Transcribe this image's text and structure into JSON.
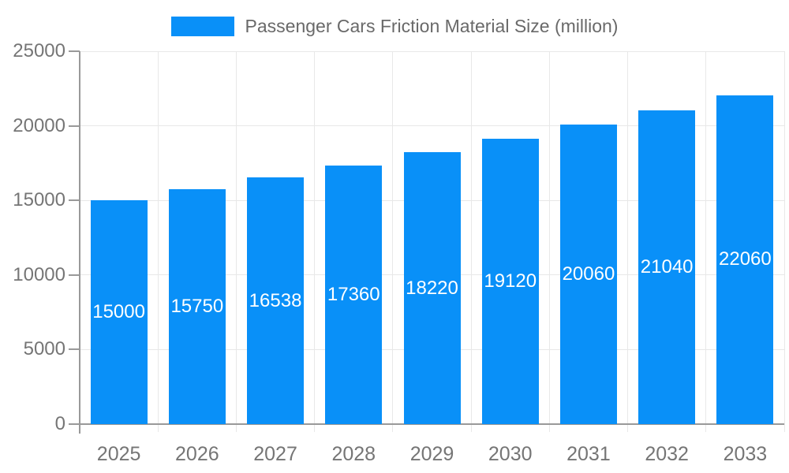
{
  "chart_data": {
    "type": "bar",
    "title": "Passenger Cars Friction Material Size (million)",
    "categories": [
      "2025",
      "2026",
      "2027",
      "2028",
      "2029",
      "2030",
      "2031",
      "2032",
      "2033"
    ],
    "values": [
      15000,
      15750,
      16538,
      17360,
      18220,
      19120,
      20060,
      21040,
      22060
    ],
    "series": [
      {
        "name": "Passenger Cars Friction Material Size (million)",
        "values": [
          15000,
          15750,
          16538,
          17360,
          18220,
          19120,
          20060,
          21040,
          22060
        ]
      }
    ],
    "xlabel": "",
    "ylabel": "",
    "ylim": [
      0,
      25000
    ],
    "y_ticks": [
      0,
      5000,
      10000,
      15000,
      20000,
      25000
    ],
    "grid": true,
    "legend_position": "top-center",
    "bar_value_labels": "inside-center",
    "colors": {
      "bar": "#0990f8",
      "bar_label_text": "#ffffff",
      "axis_line": "#999999",
      "gridline": "#e8e8e8",
      "tick_text": "#757575",
      "title_text": "#696969",
      "background": "#ffffff"
    }
  }
}
